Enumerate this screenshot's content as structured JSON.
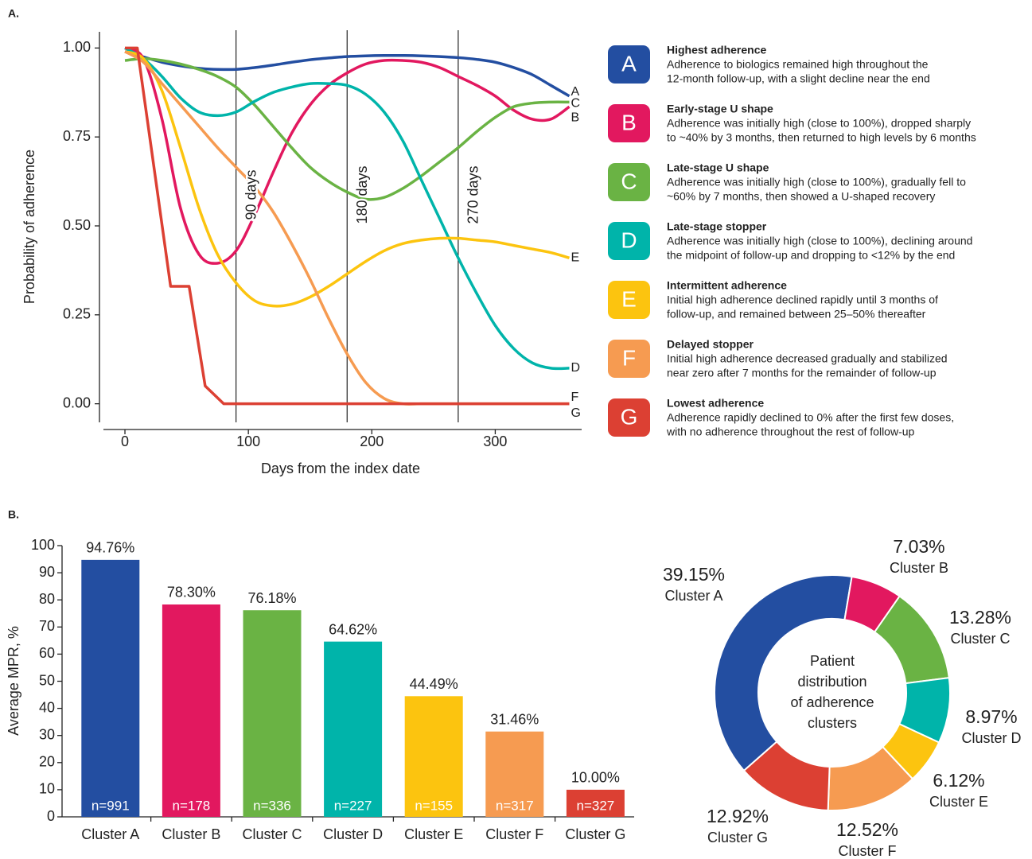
{
  "chart_data": [
    {
      "type": "line",
      "panel": "A.",
      "xlabel": "Days from the index date",
      "ylabel": "Probability of adherence",
      "xlim": [
        -20,
        370
      ],
      "xticks": [
        0,
        100,
        200,
        300
      ],
      "ylim": [
        -0.05,
        1.05
      ],
      "yticks": [
        {
          "value": 0,
          "label": "0.00"
        },
        0.25,
        {
          "value": 0.5,
          "label": "0.50"
        },
        0.75,
        {
          "value": 1,
          "label": "1.00"
        }
      ],
      "curve": "smooth",
      "vlines": [
        {
          "x": 90,
          "label": "90 days"
        },
        {
          "x": 180,
          "label": "180 days"
        },
        {
          "x": 270,
          "label": "270 days"
        }
      ],
      "x": [
        0,
        15,
        30,
        45,
        60,
        75,
        90,
        105,
        120,
        135,
        150,
        165,
        180,
        195,
        210,
        225,
        240,
        255,
        270,
        285,
        300,
        315,
        330,
        345,
        360
      ],
      "series": [
        {
          "name": "A",
          "color": "#234ea1",
          "label": "Highest adherence",
          "description": [
            "Adherence to biologics remained high throughout the",
            "12-month follow-up, with a slight decline near the end"
          ],
          "values": [
            0.99,
            0.975,
            0.96,
            0.95,
            0.943,
            0.94,
            0.94,
            0.945,
            0.952,
            0.96,
            0.967,
            0.972,
            0.976,
            0.978,
            0.979,
            0.979,
            0.978,
            0.976,
            0.973,
            0.968,
            0.96,
            0.945,
            0.925,
            0.895,
            0.865
          ]
        },
        {
          "name": "B",
          "color": "#e2185f",
          "label": "Early-stage U shape",
          "description": [
            "Adherence was initially high (close to 100%), dropped sharply",
            "to ~40% by 3 months, then returned to high levels by 6 months"
          ],
          "values": [
            1.0,
            0.97,
            0.8,
            0.55,
            0.42,
            0.395,
            0.43,
            0.53,
            0.65,
            0.76,
            0.84,
            0.895,
            0.93,
            0.955,
            0.965,
            0.965,
            0.96,
            0.945,
            0.92,
            0.895,
            0.865,
            0.825,
            0.8,
            0.8,
            0.835
          ]
        },
        {
          "name": "C",
          "color": "#6ab344",
          "label": "Late-stage U shape",
          "description": [
            "Adherence was initially high (close to 100%), gradually fell to",
            "~60% by 7 months, then showed a U-shaped recovery"
          ],
          "values": [
            0.965,
            0.97,
            0.965,
            0.955,
            0.94,
            0.92,
            0.89,
            0.84,
            0.78,
            0.72,
            0.665,
            0.625,
            0.595,
            0.575,
            0.58,
            0.605,
            0.64,
            0.68,
            0.72,
            0.765,
            0.805,
            0.835,
            0.845,
            0.848,
            0.848
          ]
        },
        {
          "name": "D",
          "color": "#00b4aa",
          "label": "Late-stage stopper",
          "description": [
            "Adherence was initially high (close to 100%), declining around",
            "the midpoint of follow-up and dropping to <12% by the end"
          ],
          "values": [
            1.0,
            0.97,
            0.92,
            0.86,
            0.82,
            0.81,
            0.82,
            0.85,
            0.875,
            0.89,
            0.9,
            0.9,
            0.895,
            0.87,
            0.82,
            0.74,
            0.63,
            0.52,
            0.41,
            0.31,
            0.22,
            0.155,
            0.115,
            0.1,
            0.1
          ]
        },
        {
          "name": "E",
          "color": "#fcc40f",
          "label": "Intermittent adherence",
          "description": [
            "Initial high adherence declined rapidly until 3 months of",
            "follow-up, and remained between 25–50% thereafter"
          ],
          "values": [
            0.99,
            0.97,
            0.88,
            0.72,
            0.55,
            0.42,
            0.34,
            0.29,
            0.275,
            0.28,
            0.3,
            0.33,
            0.365,
            0.4,
            0.43,
            0.45,
            0.46,
            0.465,
            0.465,
            0.46,
            0.455,
            0.445,
            0.435,
            0.425,
            0.41
          ]
        },
        {
          "name": "F",
          "color": "#f69b51",
          "label": "Delayed stopper",
          "description": [
            "Initial high adherence decreased gradually and stabilized",
            "near zero after 7 months for the remainder of follow-up"
          ],
          "values": [
            0.99,
            0.96,
            0.9,
            0.84,
            0.78,
            0.72,
            0.665,
            0.61,
            0.54,
            0.45,
            0.35,
            0.24,
            0.14,
            0.06,
            0.015,
            0,
            0,
            0,
            0,
            0,
            0,
            0,
            0,
            0,
            0
          ]
        },
        {
          "name": "G",
          "color": "#dc4033",
          "label": "Lowest adherence",
          "description": [
            "Adherence rapidly declined to 0% after the first few doses,",
            "with no adherence throughout the rest of follow-up"
          ],
          "curve": "linear",
          "x": [
            0,
            10,
            37,
            52,
            65,
            80,
            360
          ],
          "values": [
            1.0,
            1.0,
            0.33,
            0.33,
            0.05,
            0,
            0
          ]
        }
      ]
    },
    {
      "type": "bar",
      "panel": "B.",
      "ylabel": "Average MPR, %",
      "categories": [
        "Cluster A",
        "Cluster B",
        "Cluster C",
        "Cluster D",
        "Cluster E",
        "Cluster F",
        "Cluster G"
      ],
      "values": [
        94.76,
        78.3,
        76.18,
        64.62,
        44.49,
        31.46,
        10.0
      ],
      "value_labels": [
        "94.76%",
        "78.30%",
        "76.18%",
        "64.62%",
        "44.49%",
        "31.46%",
        "10.00%"
      ],
      "counts": [
        991,
        178,
        336,
        227,
        155,
        317,
        327
      ],
      "count_labels": [
        "n=991",
        "n=178",
        "n=336",
        "n=227",
        "n=155",
        "n=317",
        "n=327"
      ],
      "colors": [
        "#234ea1",
        "#e2185f",
        "#6ab344",
        "#00b4aa",
        "#fcc40f",
        "#f69b51",
        "#dc4033"
      ],
      "ylim": [
        0,
        100
      ],
      "yticks": [
        0,
        10,
        20,
        30,
        40,
        50,
        60,
        70,
        80,
        90,
        100
      ]
    },
    {
      "type": "donut",
      "categories": [
        "Cluster A",
        "Cluster B",
        "Cluster C",
        "Cluster D",
        "Cluster E",
        "Cluster F",
        "Cluster G"
      ],
      "values": [
        39.15,
        7.03,
        13.28,
        8.97,
        6.12,
        12.52,
        12.92
      ],
      "value_labels": [
        "39.15%",
        "7.03%",
        "13.28%",
        "8.97%",
        "6.12%",
        "12.52%",
        "12.92%"
      ],
      "colors": [
        "#234ea1",
        "#e2185f",
        "#6ab344",
        "#00b4aa",
        "#fcc40f",
        "#f69b51",
        "#dc4033"
      ],
      "center_label": [
        "Patient",
        "distribution",
        "of adherence",
        "clusters"
      ]
    }
  ]
}
